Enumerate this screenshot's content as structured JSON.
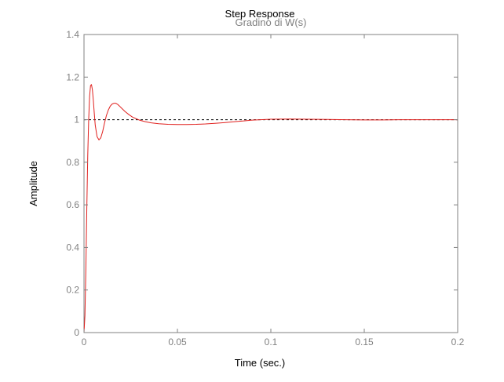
{
  "chart_data": {
    "type": "line",
    "title": "Step Response",
    "subtitle": "Gradino di W(s)",
    "xlabel": "Time (sec.)",
    "ylabel": "Amplitude",
    "xlim": [
      0,
      0.2
    ],
    "ylim": [
      0,
      1.4
    ],
    "xticks": [
      0,
      0.05,
      0.1,
      0.15,
      0.2
    ],
    "xtick_labels": [
      "0",
      "0.05",
      "0.1",
      "0.15",
      "0.2"
    ],
    "yticks": [
      0,
      0.2,
      0.4,
      0.6,
      0.8,
      1,
      1.2,
      1.4
    ],
    "ytick_labels": [
      "0",
      "0.2",
      "0.4",
      "0.6",
      "0.8",
      "1",
      "1.2",
      "1.4"
    ],
    "grid": false,
    "reference_line": {
      "y": 1,
      "style": "dashed",
      "color": "#000000"
    },
    "series": [
      {
        "color": "#e0201e",
        "x": [
          0,
          0.0005,
          0.001,
          0.0015,
          0.002,
          0.0025,
          0.003,
          0.0035,
          0.004,
          0.0045,
          0.005,
          0.0055,
          0.006,
          0.007,
          0.008,
          0.009,
          0.01,
          0.011,
          0.012,
          0.013,
          0.014,
          0.015,
          0.016,
          0.017,
          0.018,
          0.019,
          0.02,
          0.022,
          0.024,
          0.026,
          0.028,
          0.03,
          0.033,
          0.036,
          0.04,
          0.045,
          0.05,
          0.055,
          0.06,
          0.065,
          0.07,
          0.075,
          0.08,
          0.085,
          0.09,
          0.1,
          0.11,
          0.12,
          0.13,
          0.14,
          0.15,
          0.16,
          0.17,
          0.18,
          0.19,
          0.2
        ],
        "y": [
          0,
          0.08,
          0.3,
          0.58,
          0.83,
          1.0,
          1.11,
          1.16,
          1.165,
          1.14,
          1.09,
          1.03,
          0.975,
          0.92,
          0.905,
          0.915,
          0.945,
          0.985,
          1.02,
          1.045,
          1.063,
          1.073,
          1.077,
          1.077,
          1.072,
          1.064,
          1.055,
          1.038,
          1.024,
          1.012,
          1.004,
          0.997,
          0.99,
          0.985,
          0.981,
          0.978,
          0.977,
          0.977,
          0.978,
          0.98,
          0.983,
          0.986,
          0.99,
          0.994,
          0.998,
          1.002,
          1.003,
          1.002,
          1.001,
          1.0,
          0.999,
          0.999,
          1.0,
          1.0,
          1.0,
          1.0
        ]
      }
    ]
  },
  "colors": {
    "axis": "#808080",
    "tick_label": "#808080",
    "title": "#000000",
    "subtitle": "#808080",
    "line": "#e0201e",
    "reference": "#000000"
  }
}
